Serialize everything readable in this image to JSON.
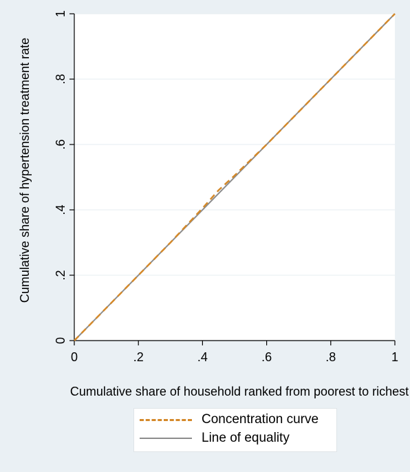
{
  "chart_data": {
    "type": "line",
    "title": "",
    "xlabel": "Cumulative share of household ranked from poorest to richest",
    "ylabel": "Cumulative share of hypertension treatment rate",
    "xlim": [
      0,
      1
    ],
    "ylim": [
      0,
      1
    ],
    "x_ticks": [
      0,
      0.2,
      0.4,
      0.6,
      0.8,
      1
    ],
    "x_tick_labels": [
      "0",
      ".2",
      ".4",
      ".6",
      ".8",
      "1"
    ],
    "y_ticks": [
      0,
      0.2,
      0.4,
      0.6,
      0.8,
      1
    ],
    "y_tick_labels": [
      "0",
      ".2",
      ".4",
      ".6",
      ".8",
      "1"
    ],
    "grid": "horizontal",
    "legend_position": "bottom",
    "series": [
      {
        "name": "Concentration curve",
        "color": "#d4892a",
        "style": "dashed",
        "x": [
          0,
          0.1,
          0.2,
          0.3,
          0.4,
          0.45,
          0.5,
          0.6,
          0.7,
          0.8,
          0.9,
          1
        ],
        "y": [
          0,
          0.1,
          0.2,
          0.3,
          0.405,
          0.46,
          0.505,
          0.6,
          0.7,
          0.8,
          0.9,
          1
        ]
      },
      {
        "name": "Line of equality",
        "color": "#8c8c8c",
        "style": "solid",
        "x": [
          0,
          1
        ],
        "y": [
          0,
          1
        ]
      }
    ]
  }
}
